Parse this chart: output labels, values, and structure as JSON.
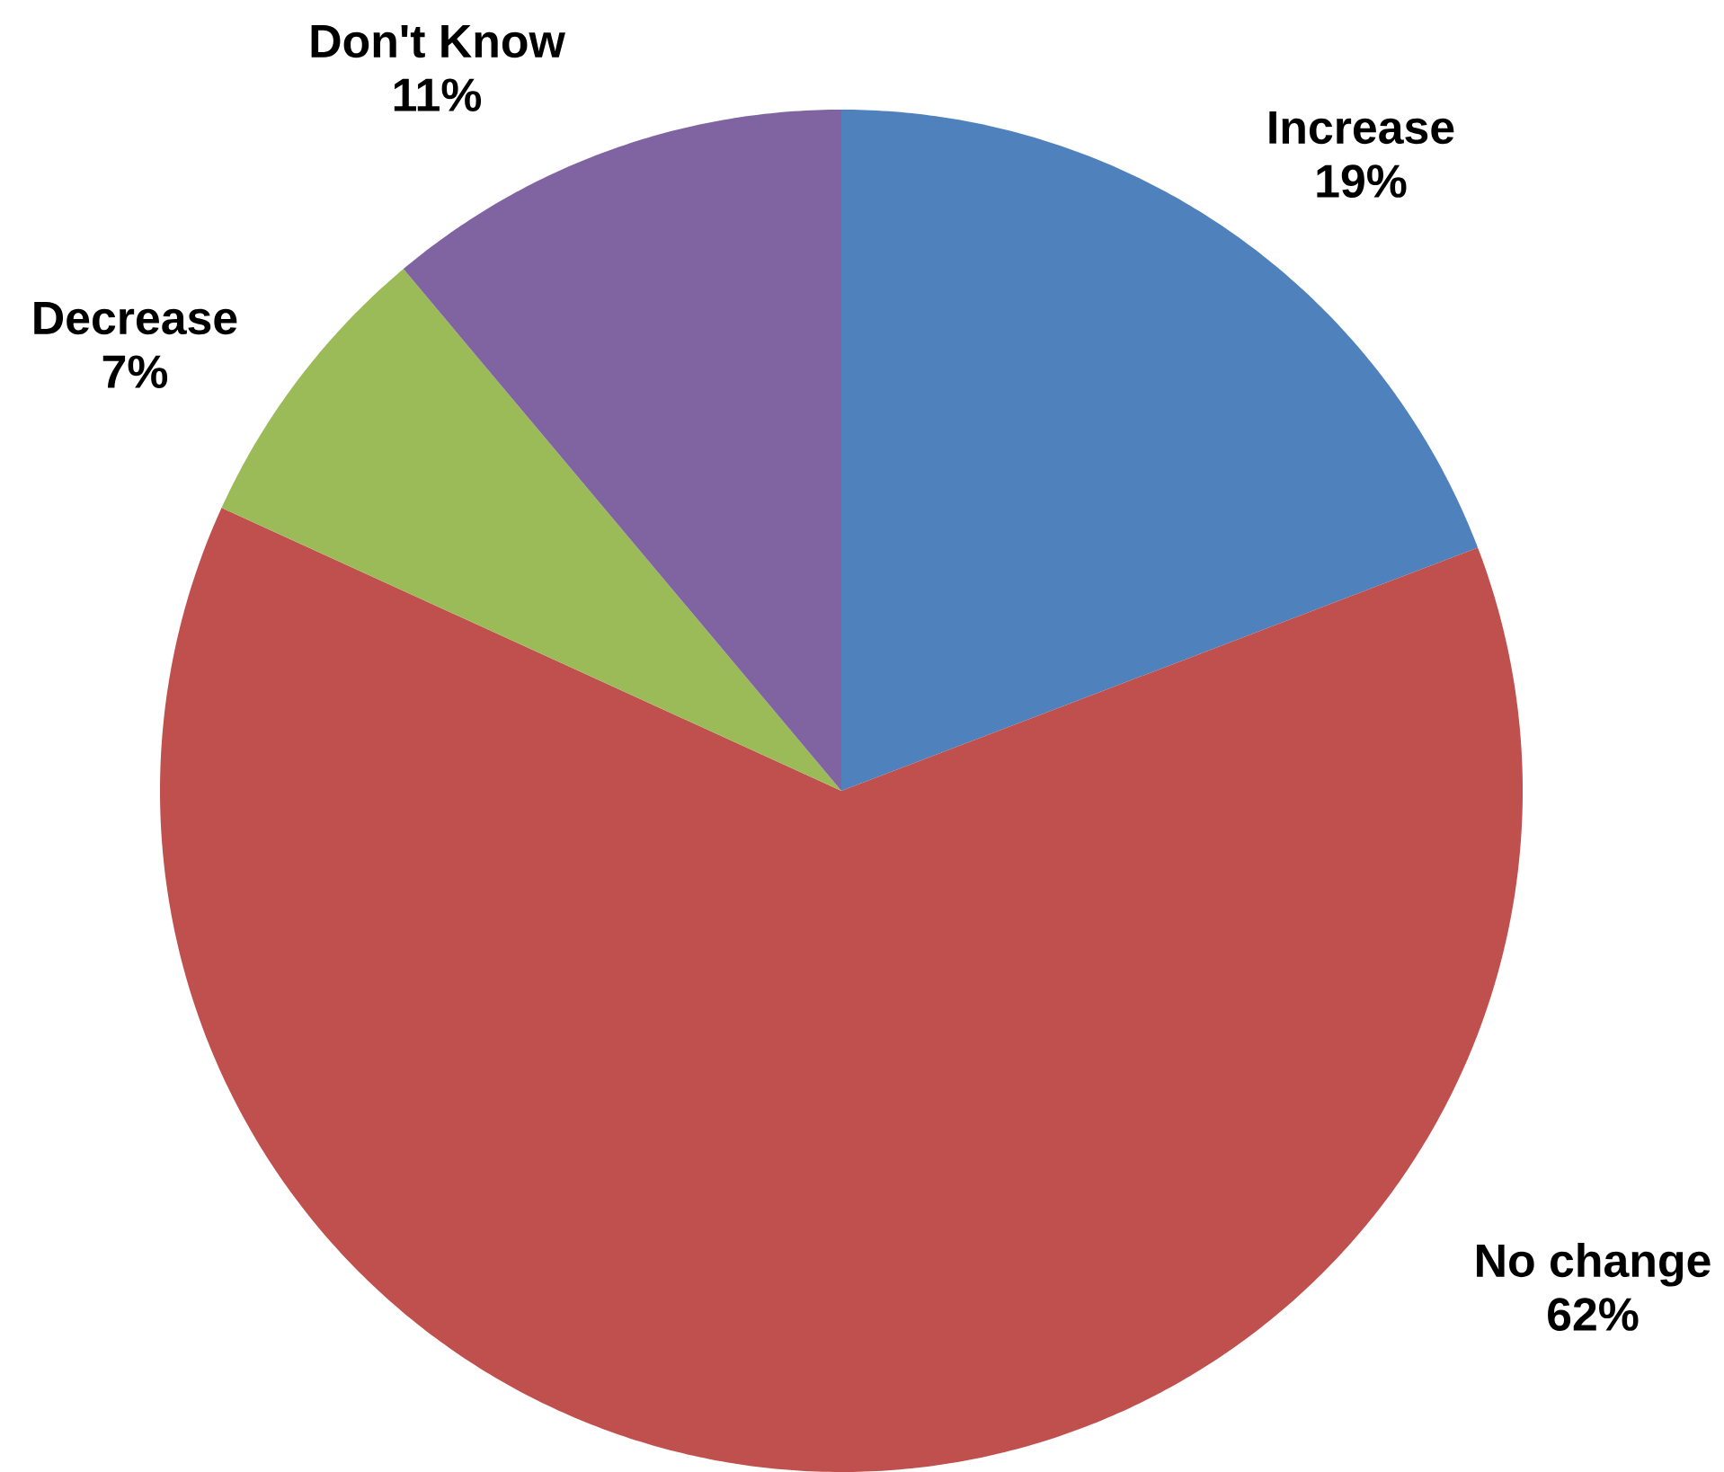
{
  "chart_data": {
    "type": "pie",
    "categories": [
      "Increase",
      "No change",
      "Decrease",
      "Don't Know"
    ],
    "values": [
      19,
      62,
      7,
      11
    ],
    "value_labels": [
      "19%",
      "62%",
      "7%",
      "11%"
    ],
    "colors": [
      "#4f81bd",
      "#c0504d",
      "#9bbb59",
      "#8064a2"
    ]
  }
}
